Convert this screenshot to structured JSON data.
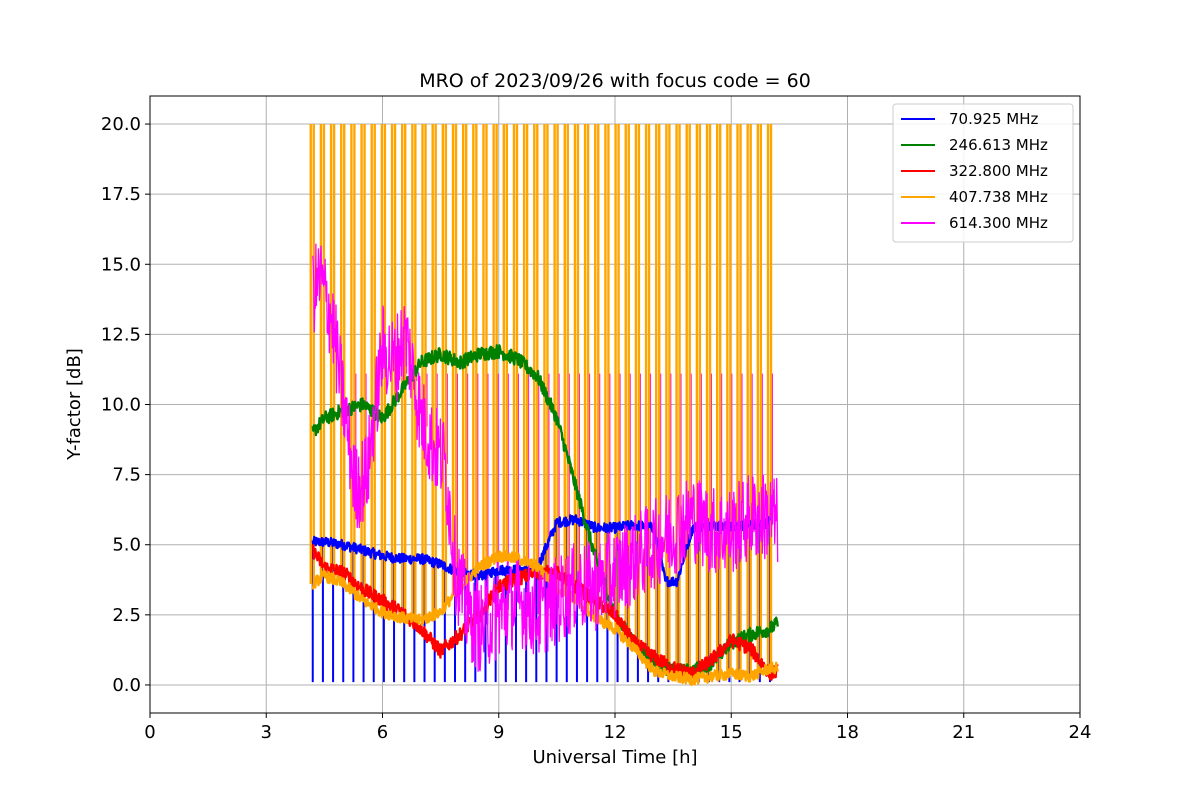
{
  "chart_data": {
    "type": "line",
    "title": "MRO of 2023/09/26 with focus code = 60",
    "xlabel": "Universal Time [h]",
    "ylabel": "Y-factor [dB]",
    "xlim": [
      0,
      24
    ],
    "ylim": [
      -1,
      21
    ],
    "xticks": [
      0,
      3,
      6,
      9,
      12,
      15,
      18,
      21,
      24
    ],
    "xtick_labels": [
      "0",
      "3",
      "6",
      "9",
      "12",
      "15",
      "18",
      "21",
      "24"
    ],
    "yticks": [
      0,
      2.5,
      5,
      7.5,
      10,
      12.5,
      15,
      17.5,
      20
    ],
    "ytick_labels": [
      "0.0",
      "2.5",
      "5.0",
      "7.5",
      "10.0",
      "12.5",
      "15.0",
      "17.5",
      "20.0"
    ],
    "grid": true,
    "legend_position": "upper-right",
    "spikes": {
      "start": 4.2,
      "end": 16.0,
      "count": 46,
      "orange_peak": 20.0,
      "magenta_peak": 11.1,
      "blue_floor": 0.1
    },
    "series": [
      {
        "name": " 70.925 MHz",
        "color": "#0000ff",
        "x": [
          4.2,
          4.5,
          5.0,
          5.5,
          6.0,
          6.5,
          7.0,
          7.5,
          8.0,
          8.5,
          9.0,
          9.5,
          10.0,
          10.5,
          11.0,
          11.5,
          12.0,
          12.5,
          13.0,
          13.3,
          13.6,
          14.0,
          14.5,
          15.0,
          15.5,
          16.0
        ],
        "values": [
          5.1,
          5.1,
          5.0,
          4.8,
          4.6,
          4.5,
          4.5,
          4.3,
          4.0,
          3.9,
          4.1,
          4.1,
          4.2,
          5.8,
          5.9,
          5.6,
          5.6,
          5.7,
          5.6,
          3.7,
          3.7,
          5.6,
          5.7,
          5.6,
          5.7,
          5.8
        ]
      },
      {
        "name": "246.613 MHz",
        "color": "#008000",
        "x": [
          4.2,
          4.5,
          5.0,
          5.5,
          6.0,
          6.5,
          7.0,
          7.5,
          8.0,
          8.5,
          9.0,
          9.5,
          10.0,
          10.5,
          11.0,
          11.5,
          12.0,
          12.5,
          13.0,
          13.5,
          14.0,
          14.5,
          15.0,
          15.5,
          16.0,
          16.2
        ],
        "values": [
          9.0,
          9.5,
          9.8,
          10.0,
          9.5,
          10.5,
          11.5,
          11.8,
          11.5,
          11.8,
          11.9,
          11.6,
          11.0,
          9.5,
          7.0,
          4.5,
          2.5,
          1.5,
          0.8,
          0.5,
          0.5,
          0.8,
          1.5,
          1.8,
          2.0,
          2.2
        ]
      },
      {
        "name": "322.800 MHz",
        "color": "#ff0000",
        "x": [
          4.2,
          4.5,
          5.0,
          5.5,
          6.0,
          6.5,
          7.0,
          7.5,
          8.0,
          8.5,
          9.0,
          9.5,
          10.0,
          10.5,
          11.0,
          11.5,
          12.0,
          12.5,
          13.0,
          13.5,
          14.0,
          14.5,
          15.0,
          15.5,
          16.0,
          16.2
        ],
        "values": [
          4.8,
          4.2,
          4.0,
          3.4,
          3.0,
          2.6,
          2.0,
          1.2,
          1.8,
          2.5,
          3.5,
          3.8,
          4.0,
          4.0,
          3.5,
          3.0,
          2.5,
          1.5,
          1.0,
          0.6,
          0.4,
          0.9,
          1.6,
          1.3,
          0.4,
          0.5
        ]
      },
      {
        "name": "407.738 MHz",
        "color": "#ffa500",
        "x": [
          4.2,
          4.5,
          5.0,
          5.5,
          6.0,
          6.5,
          7.0,
          7.5,
          8.0,
          8.5,
          9.0,
          9.5,
          10.0,
          10.5,
          11.0,
          11.5,
          12.0,
          12.5,
          13.0,
          13.5,
          14.0,
          14.5,
          15.0,
          15.5,
          16.0,
          16.2
        ],
        "values": [
          3.6,
          3.9,
          3.6,
          3.0,
          2.6,
          2.4,
          2.3,
          2.6,
          3.5,
          4.2,
          4.6,
          4.5,
          4.2,
          3.5,
          3.0,
          2.4,
          2.0,
          1.3,
          0.5,
          0.3,
          0.2,
          0.3,
          0.4,
          0.3,
          0.6,
          0.6
        ]
      },
      {
        "name": "614.300 MHz",
        "color": "#ff00ff",
        "x": [
          4.2,
          4.4,
          4.7,
          5.0,
          5.3,
          5.6,
          6.0,
          6.3,
          6.6,
          7.0,
          7.3,
          7.6,
          7.9,
          8.2,
          8.5,
          9.0,
          9.5,
          10.0,
          10.5,
          11.0,
          11.5,
          12.0,
          12.5,
          13.0,
          13.5,
          14.0,
          14.5,
          15.0,
          15.5,
          16.0,
          16.2
        ],
        "values": [
          14.0,
          14.5,
          13.0,
          10.0,
          7.0,
          7.5,
          12.0,
          11.5,
          12.5,
          9.5,
          8.5,
          8.0,
          4.0,
          2.5,
          2.0,
          2.5,
          3.0,
          2.5,
          3.0,
          3.5,
          3.5,
          4.0,
          4.5,
          5.0,
          5.5,
          6.0,
          5.5,
          5.5,
          6.0,
          6.0,
          5.8
        ]
      }
    ]
  }
}
